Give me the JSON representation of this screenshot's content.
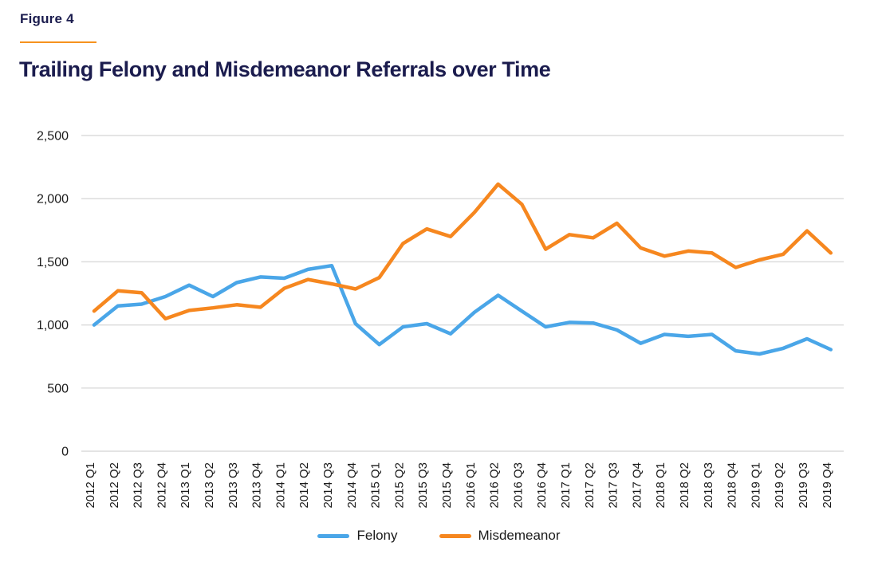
{
  "figure_label": "Figure 4",
  "title": "Trailing Felony and Misdemeanor Referrals over Time",
  "colors": {
    "heading_navy": "#1b1c4e",
    "rule_orange": "#f6921e",
    "grid": "#dcdcdc",
    "axis_text": "#1a1a1a",
    "felony_blue": "#4aa6e8",
    "misdemeanor_orange": "#f6871f"
  },
  "legend": {
    "items": [
      {
        "label": "Felony",
        "color": "#4aa6e8"
      },
      {
        "label": "Misdemeanor",
        "color": "#f6871f"
      }
    ]
  },
  "chart_data": {
    "type": "line",
    "title": "Trailing Felony and Misdemeanor Referrals over Time",
    "xlabel": "",
    "ylabel": "",
    "ylim": [
      0,
      2500
    ],
    "yticks": [
      0,
      500,
      1000,
      1500,
      2000,
      2500
    ],
    "ytick_labels": [
      "0",
      "500",
      "1,000",
      "1,500",
      "2,000",
      "2,500"
    ],
    "grid": true,
    "legend_position": "bottom",
    "categories": [
      "2012 Q1",
      "2012 Q2",
      "2012 Q3",
      "2012 Q4",
      "2013 Q1",
      "2013 Q2",
      "2013 Q3",
      "2013 Q4",
      "2014 Q1",
      "2014 Q2",
      "2014 Q3",
      "2014 Q4",
      "2015 Q1",
      "2015 Q2",
      "2015 Q3",
      "2015 Q4",
      "2016 Q1",
      "2016 Q2",
      "2016 Q3",
      "2016 Q4",
      "2017 Q1",
      "2017 Q2",
      "2017 Q3",
      "2017 Q4",
      "2018 Q1",
      "2018 Q2",
      "2018 Q3",
      "2018 Q4",
      "2019 Q1",
      "2019 Q2",
      "2019 Q3",
      "2019 Q4"
    ],
    "series": [
      {
        "name": "Felony",
        "color": "#4aa6e8",
        "values": [
          1000,
          1150,
          1165,
          1225,
          1315,
          1225,
          1335,
          1380,
          1370,
          1440,
          1470,
          1010,
          845,
          985,
          1010,
          930,
          1100,
          1235,
          1110,
          985,
          1020,
          1015,
          960,
          855,
          925,
          910,
          925,
          795,
          770,
          815,
          890,
          805
        ]
      },
      {
        "name": "Misdemeanor",
        "color": "#f6871f",
        "values": [
          1110,
          1270,
          1255,
          1050,
          1115,
          1135,
          1160,
          1140,
          1290,
          1360,
          1325,
          1285,
          1375,
          1645,
          1760,
          1700,
          1890,
          2115,
          1955,
          1600,
          1715,
          1690,
          1805,
          1610,
          1545,
          1585,
          1570,
          1455,
          1515,
          1560,
          1745,
          1570
        ]
      }
    ]
  }
}
